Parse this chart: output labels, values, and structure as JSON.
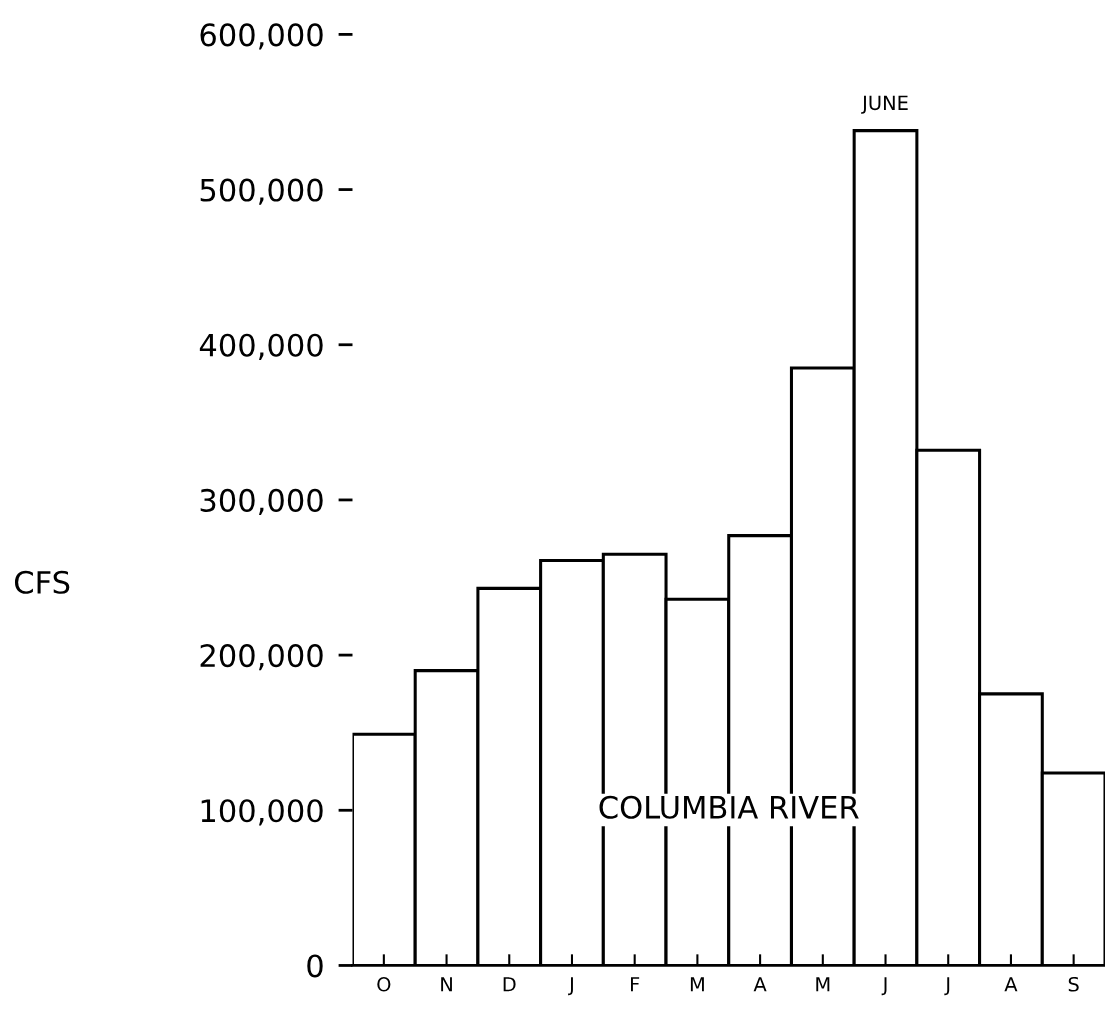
{
  "chart_data": {
    "type": "bar",
    "ylabel": "CFS",
    "categories": [
      "O",
      "N",
      "D",
      "J",
      "F",
      "M",
      "A",
      "M",
      "J",
      "J",
      "A",
      "S"
    ],
    "values": [
      149000,
      190000,
      243000,
      261000,
      265000,
      236000,
      277000,
      385000,
      538000,
      332000,
      175000,
      124000
    ],
    "color": "#ffffff",
    "ylim": [
      0,
      600000
    ],
    "yticks": [
      0,
      {
        "value": 100000,
        "label": "100,000"
      },
      {
        "value": 200000,
        "label": "200,000"
      },
      {
        "value": 300000,
        "label": "300,000"
      },
      {
        "value": 400000,
        "label": "400,000"
      },
      {
        "value": 500000,
        "label": "500,000"
      },
      {
        "value": 600000,
        "label": "600,000"
      }
    ],
    "grid": false,
    "legend": false,
    "annotations": [
      "JUNE",
      "COLUMBIA RIVER"
    ]
  }
}
